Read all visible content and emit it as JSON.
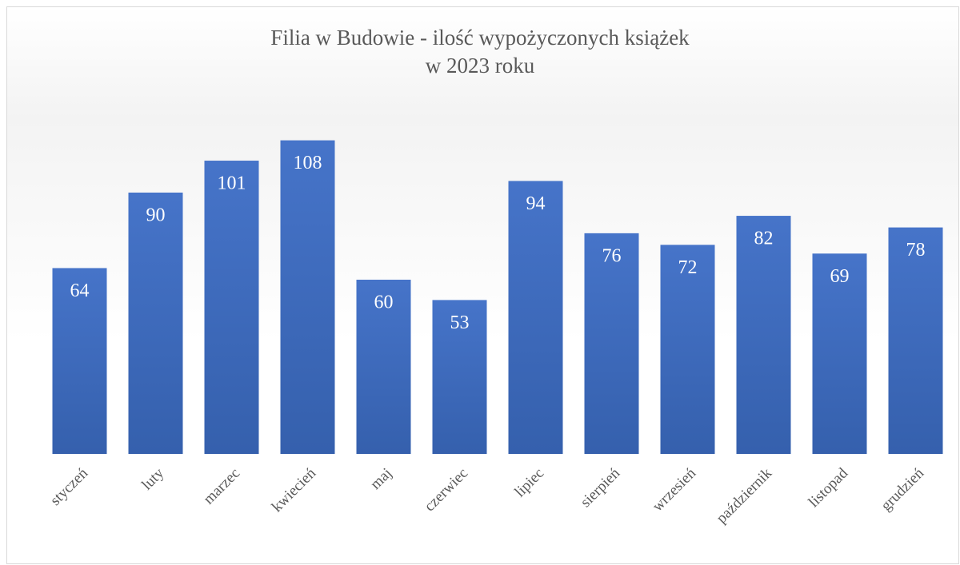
{
  "chart_data": {
    "type": "bar",
    "title": [
      "Filia w Budowie - ilość wypożyczonych książek",
      "w 2023 roku"
    ],
    "categories": [
      "styczeń",
      "luty",
      "marzec",
      "kwiecień",
      "maj",
      "czerwiec",
      "lipiec",
      "sierpień",
      "wrzesień",
      "październik",
      "listopad",
      "grudzień"
    ],
    "values": [
      64,
      90,
      101,
      108,
      60,
      53,
      94,
      76,
      72,
      82,
      69,
      78
    ],
    "color": "#4472c4",
    "ylim": [
      0,
      120
    ]
  }
}
